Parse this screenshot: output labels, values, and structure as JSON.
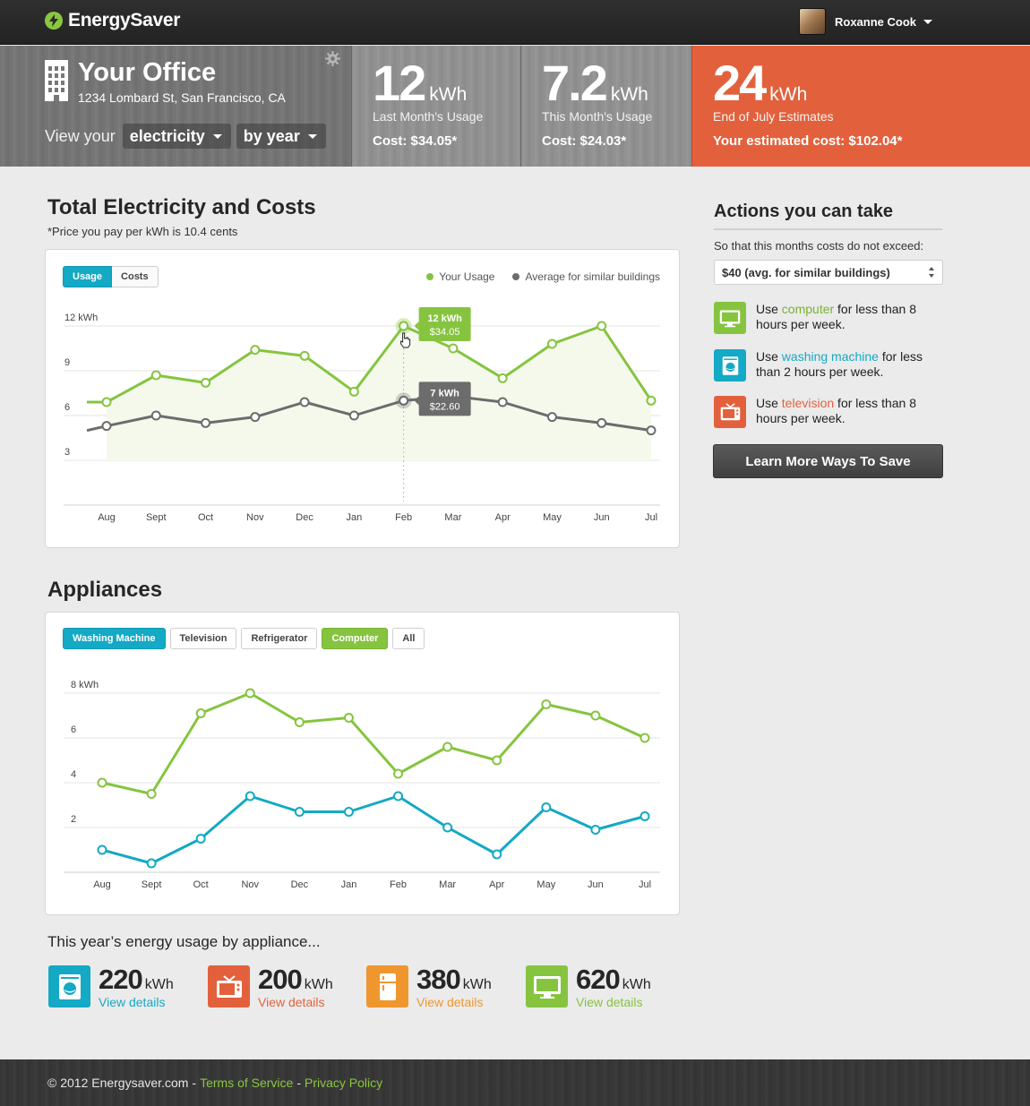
{
  "app": {
    "name": "EnergySaver"
  },
  "user": {
    "name": "Roxanne Cook"
  },
  "office": {
    "title": "Your Office",
    "address": "1234 Lombard St, San Francisco, CA",
    "view_label": "View your",
    "resource_select": "electricity",
    "period_select": "by year"
  },
  "stats": [
    {
      "value": "12",
      "unit": "kWh",
      "label": "Last Month's Usage",
      "cost": "Cost: $34.05*"
    },
    {
      "value": "7.2",
      "unit": "kWh",
      "label": "This Month's Usage",
      "cost": "Cost: $24.03*"
    },
    {
      "value": "24",
      "unit": "kWh",
      "label": "End of July Estimates",
      "cost": "Your estimated cost: $102.04*"
    }
  ],
  "total": {
    "title": "Total Electricity and Costs",
    "note": "*Price you pay per kWh is 10.4 cents",
    "tabs": [
      "Usage",
      "Costs"
    ],
    "legend": [
      "Your Usage",
      "Average for similar buildings"
    ],
    "tooltip_usage": {
      "line1": "12 kWh",
      "line2": "$34.05"
    },
    "tooltip_avg": {
      "line1": "7 kWh",
      "line2": "$22.60"
    }
  },
  "appliances": {
    "title": "Appliances",
    "filters": [
      "Washing Machine",
      "Television",
      "Refrigerator",
      "Computer",
      "All"
    ]
  },
  "chart_data": [
    {
      "type": "line",
      "title": "Total Electricity and Costs",
      "categories": [
        "Aug",
        "Sept",
        "Oct",
        "Nov",
        "Dec",
        "Jan",
        "Feb",
        "Mar",
        "Apr",
        "May",
        "Jun",
        "Jul"
      ],
      "y_ticks": [
        "12 kWh",
        "9",
        "6",
        "3"
      ],
      "ylim": [
        0,
        12
      ],
      "grid": true,
      "legend_position": "top-right",
      "series": [
        {
          "name": "Your Usage",
          "color": "#86c440",
          "values": [
            6.9,
            8.7,
            8.2,
            10.4,
            10.0,
            7.6,
            12.0,
            10.5,
            8.5,
            10.8,
            12.0,
            7.0
          ]
        },
        {
          "name": "Average for similar buildings",
          "color": "#6c6c6c",
          "values": [
            5.3,
            6.0,
            5.5,
            5.9,
            6.9,
            6.0,
            7.0,
            7.3,
            6.9,
            5.9,
            5.5,
            5.0
          ]
        }
      ]
    },
    {
      "type": "line",
      "title": "Appliances",
      "categories": [
        "Aug",
        "Sept",
        "Oct",
        "Nov",
        "Dec",
        "Jan",
        "Feb",
        "Mar",
        "Apr",
        "May",
        "Jun",
        "Jul"
      ],
      "y_ticks": [
        "8 kWh",
        "6",
        "4",
        "2"
      ],
      "ylim": [
        0,
        8
      ],
      "grid": true,
      "series": [
        {
          "color": "#86c440",
          "values": [
            4.0,
            3.5,
            7.1,
            8.0,
            6.7,
            6.9,
            4.4,
            5.6,
            5.0,
            7.5,
            7.0,
            6.0
          ]
        },
        {
          "color": "#14a9c4",
          "values": [
            1.0,
            0.4,
            1.5,
            3.4,
            2.7,
            2.7,
            3.4,
            2.0,
            0.8,
            2.9,
            1.9,
            2.5
          ]
        }
      ]
    }
  ],
  "actions": {
    "title": "Actions you can take",
    "subtitle": "So that this months costs do not exceed:",
    "budget_select": "$40 (avg. for similar buildings)",
    "items": [
      {
        "pre": "Use ",
        "highlight": "computer",
        "post": " for less than 8 hours per week.",
        "color": "#86c440",
        "icon": "computer-icon"
      },
      {
        "pre": "Use ",
        "highlight": "washing machine",
        "post": " for less than 2 hours per week.",
        "color": "#14a9c4",
        "icon": "washing-machine-icon"
      },
      {
        "pre": "Use ",
        "highlight": "television",
        "post": " for less than 8 hours per week.",
        "color": "#e2613c",
        "icon": "television-icon"
      }
    ],
    "button": "Learn More Ways To Save"
  },
  "summary": {
    "title": "This year’s energy usage by appliance...",
    "items": [
      {
        "value": "220",
        "unit": "kWh",
        "link": "View details",
        "color": "#14a9c4",
        "icon": "washing-machine-icon"
      },
      {
        "value": "200",
        "unit": "kWh",
        "link": "View details",
        "color": "#e2613c",
        "icon": "television-icon"
      },
      {
        "value": "380",
        "unit": "kWh",
        "link": "View details",
        "color": "#f0962f",
        "icon": "refrigerator-icon"
      },
      {
        "value": "620",
        "unit": "kWh",
        "link": "View details",
        "color": "#86c440",
        "icon": "computer-icon"
      }
    ]
  },
  "footer": {
    "copyright": "© 2012 Energysaver.com",
    "terms": "Terms of Service",
    "privacy": "Privacy Policy"
  }
}
